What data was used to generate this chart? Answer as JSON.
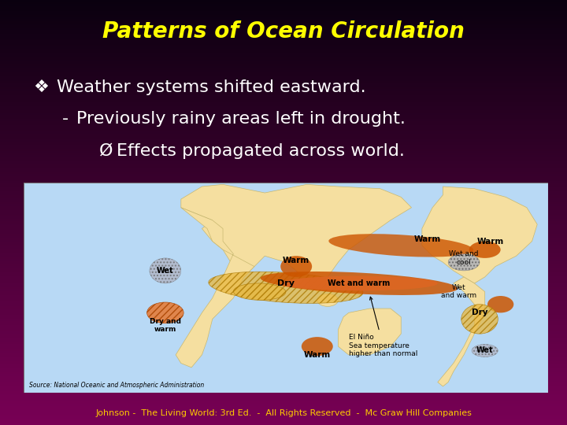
{
  "title": "Patterns of Ocean Circulation",
  "title_color": "#FFFF00",
  "title_fontsize": 20,
  "bg_top_color": "#0a000f",
  "bg_bottom_color": "#5a1060",
  "bullet1_prefix": "❖ ",
  "bullet1_text": "Weather systems shifted eastward.",
  "bullet2_prefix": "- ",
  "bullet2_text": "Previously rainy areas left in drought.",
  "bullet3_prefix": "Ø ",
  "bullet3_text": "Effects propagated across world.",
  "text_color": "#ffffff",
  "text_fontsize": 16,
  "footer": "Johnson -  The Living World: 3rd Ed.  -  All Rights Reserved  -  Mc Graw Hill Companies",
  "footer_color": "#ffcc00",
  "footer_fontsize": 8,
  "ocean_color": "#b8d9f5",
  "land_color": "#f5dfa0",
  "land_edge": "#c8b870",
  "warm_color": "#cc5500",
  "dry_hatch_color": "#e8a040",
  "wet_dot_color": "#8888aa",
  "source_text": "Source: National Oceanic and Atmospheric Administration"
}
